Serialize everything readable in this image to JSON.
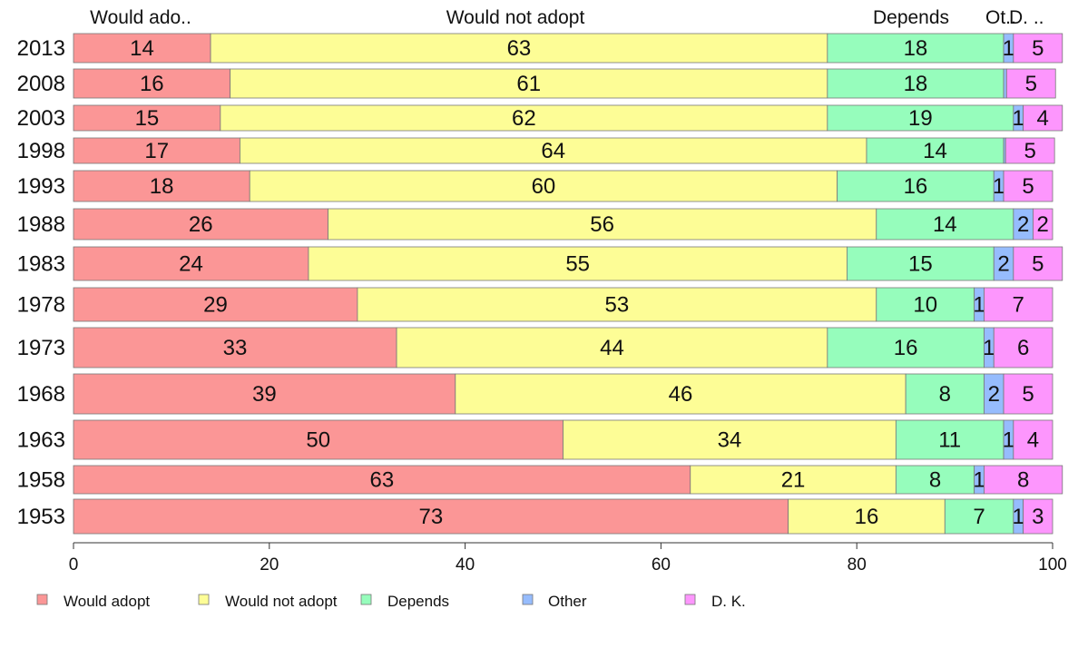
{
  "colors": {
    "would_adopt": "#fb9696",
    "would_not_adopt": "#fdfd96",
    "depends": "#96fdbc",
    "other": "#96bcfd",
    "dk": "#fd96fd",
    "outline": "#777777"
  },
  "chart_data": {
    "type": "bar",
    "orientation": "horizontal-stacked",
    "categories": [
      "2013",
      "2008",
      "2003",
      "1998",
      "1993",
      "1988",
      "1983",
      "1978",
      "1973",
      "1968",
      "1963",
      "1958",
      "1953"
    ],
    "series": [
      {
        "name": "Would adopt",
        "values": [
          14,
          16,
          15,
          17,
          18,
          26,
          24,
          29,
          33,
          39,
          50,
          63,
          73
        ]
      },
      {
        "name": "Would not adopt",
        "values": [
          63,
          61,
          62,
          64,
          60,
          56,
          55,
          53,
          44,
          46,
          34,
          21,
          16
        ]
      },
      {
        "name": "Depends",
        "values": [
          18,
          18,
          19,
          14,
          16,
          14,
          15,
          10,
          16,
          8,
          11,
          8,
          7
        ]
      },
      {
        "name": "Other",
        "values": [
          1,
          0.3,
          1,
          0.2,
          1,
          2,
          2,
          1,
          1,
          2,
          1,
          1,
          1
        ]
      },
      {
        "name": "D. K.",
        "values": [
          5,
          5,
          4,
          5,
          5,
          2,
          5,
          7,
          6,
          5,
          4,
          8,
          3
        ]
      }
    ],
    "segment_labels": [
      [
        "14",
        "63",
        "18",
        "1",
        "5"
      ],
      [
        "16",
        "61",
        "18",
        "",
        "5"
      ],
      [
        "15",
        "62",
        "19",
        "1",
        "4"
      ],
      [
        "17",
        "64",
        "14",
        "",
        "5"
      ],
      [
        "18",
        "60",
        "16",
        "1",
        "5"
      ],
      [
        "26",
        "56",
        "14",
        "2",
        "2"
      ],
      [
        "24",
        "55",
        "15",
        "2",
        "5"
      ],
      [
        "29",
        "53",
        "10",
        "1",
        "7"
      ],
      [
        "33",
        "44",
        "16",
        "1",
        "6"
      ],
      [
        "39",
        "46",
        "8",
        "2",
        "5"
      ],
      [
        "50",
        "34",
        "11",
        "1",
        "4"
      ],
      [
        "63",
        "21",
        "8",
        "1",
        "8"
      ],
      [
        "73",
        "16",
        "7",
        "1",
        "3"
      ]
    ],
    "top_labels": [
      "Would ado..",
      "Would not adopt",
      "Depends",
      "Ot..",
      "D. .."
    ],
    "xlim": [
      0,
      100
    ],
    "xticks": [
      "0",
      "20",
      "40",
      "60",
      "80",
      "100"
    ],
    "legend": [
      "Would adopt",
      "Would not adopt",
      "Depends",
      "Other",
      "D. K."
    ],
    "legend_position": "bottom"
  }
}
